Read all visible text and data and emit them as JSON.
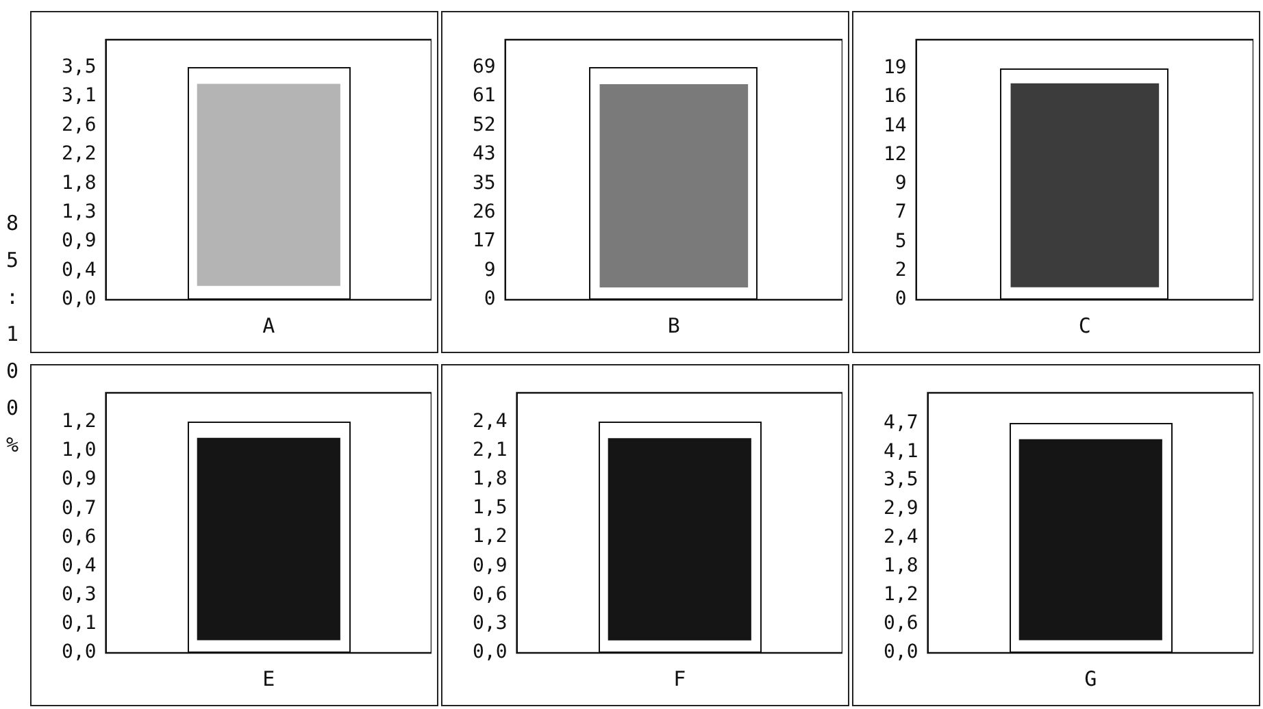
{
  "chart_data": [
    {
      "type": "bar",
      "ylabel": "85:100%",
      "categories": [
        "A"
      ],
      "values": [
        3.06
      ],
      "base": [
        0.21
      ],
      "color": "#b4b4b4",
      "ylim": [
        0,
        3.94
      ],
      "yticks": [
        {
          "value": 0,
          "label": "0,0"
        },
        {
          "value": 0.44,
          "label": "0,4"
        },
        {
          "value": 0.88,
          "label": "0,9"
        },
        {
          "value": 1.32,
          "label": "1,3"
        },
        {
          "value": 1.76,
          "label": "1,8"
        },
        {
          "value": 2.2,
          "label": "2,2"
        },
        {
          "value": 2.64,
          "label": "2,6"
        },
        {
          "value": 3.08,
          "label": "3,1"
        },
        {
          "value": 3.52,
          "label": "3,5"
        }
      ]
    },
    {
      "type": "bar",
      "categories": [
        "B"
      ],
      "values": [
        60.7
      ],
      "base": [
        3.7
      ],
      "color": "#7a7a7a",
      "ylim": [
        0,
        77.7
      ],
      "yticks": [
        0,
        {
          "value": 8.675,
          "label": "9"
        },
        {
          "value": 17.35,
          "label": "17"
        },
        {
          "value": 26.025,
          "label": "26"
        },
        {
          "value": 34.7,
          "label": "35"
        },
        {
          "value": 43.375,
          "label": "43"
        },
        {
          "value": 52.05,
          "label": "52"
        },
        {
          "value": 60.725,
          "label": "61"
        },
        {
          "value": 69.4,
          "label": "69"
        }
      ]
    },
    {
      "type": "bar",
      "categories": [
        "C"
      ],
      "values": [
        16.4
      ],
      "base": [
        1.0
      ],
      "color": "#3c3c3c",
      "ylim": [
        0,
        20.9
      ],
      "yticks": [
        0,
        {
          "value": 2.325,
          "label": "2"
        },
        {
          "value": 4.65,
          "label": "5"
        },
        {
          "value": 6.975,
          "label": "7"
        },
        {
          "value": 9.3,
          "label": "9"
        },
        {
          "value": 11.625,
          "label": "12"
        },
        {
          "value": 13.95,
          "label": "14"
        },
        {
          "value": 16.275,
          "label": "16"
        },
        {
          "value": 18.6,
          "label": "19"
        }
      ]
    },
    {
      "type": "bar",
      "categories": [
        "E"
      ],
      "values": [
        1.035
      ],
      "base": [
        0.065
      ],
      "color": "#151515",
      "ylim": [
        0,
        1.33
      ],
      "yticks": [
        {
          "value": 0,
          "label": "0,0"
        },
        {
          "value": 0.1475,
          "label": "0,1"
        },
        {
          "value": 0.295,
          "label": "0,3"
        },
        {
          "value": 0.4425,
          "label": "0,4"
        },
        {
          "value": 0.59,
          "label": "0,6"
        },
        {
          "value": 0.7375,
          "label": "0,7"
        },
        {
          "value": 0.885,
          "label": "0,9"
        },
        {
          "value": 1.0325,
          "label": "1,0"
        },
        {
          "value": 1.18,
          "label": "1,2"
        }
      ]
    },
    {
      "type": "bar",
      "categories": [
        "F"
      ],
      "values": [
        2.1
      ],
      "base": [
        0.13
      ],
      "color": "#151515",
      "ylim": [
        0,
        2.7
      ],
      "yticks": [
        {
          "value": 0,
          "label": "0,0"
        },
        {
          "value": 0.3,
          "label": "0,3"
        },
        {
          "value": 0.6,
          "label": "0,6"
        },
        {
          "value": 0.9,
          "label": "0,9"
        },
        {
          "value": 1.2,
          "label": "1,2"
        },
        {
          "value": 1.5,
          "label": "1,5"
        },
        {
          "value": 1.8,
          "label": "1,8"
        },
        {
          "value": 2.1,
          "label": "2,1"
        },
        {
          "value": 2.4,
          "label": "2,4"
        }
      ]
    },
    {
      "type": "bar",
      "categories": [
        "G"
      ],
      "values": [
        4.11
      ],
      "base": [
        0.26
      ],
      "color": "#151515",
      "ylim": [
        0,
        5.32
      ],
      "yticks": [
        {
          "value": 0,
          "label": "0,0"
        },
        {
          "value": 0.5875,
          "label": "0,6"
        },
        {
          "value": 1.175,
          "label": "1,2"
        },
        {
          "value": 1.7625,
          "label": "1,8"
        },
        {
          "value": 2.35,
          "label": "2,4"
        },
        {
          "value": 2.9375,
          "label": "2,9"
        },
        {
          "value": 3.525,
          "label": "3,5"
        },
        {
          "value": 4.1125,
          "label": "4,1"
        },
        {
          "value": 4.7,
          "label": "4,7"
        }
      ]
    }
  ]
}
